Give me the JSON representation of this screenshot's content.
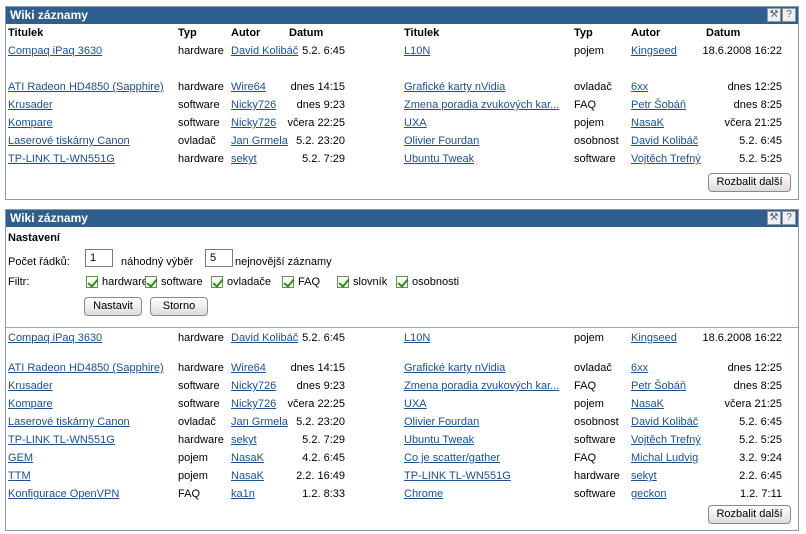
{
  "panel1": {
    "title": "Wiki záznamy",
    "icons": [
      "tools-icon",
      "help-icon"
    ],
    "headers": [
      "Titulek",
      "Typ",
      "Autor",
      "Datum"
    ],
    "left_rows": [
      {
        "title": "Compaq iPaq 3630",
        "type": "hardware",
        "author": "David Kolibáč",
        "date": "5.2. 6:45"
      },
      {
        "title": "ATI Radeon HD4850 (Sapphire)",
        "type": "hardware",
        "author": "Wire64",
        "date": "dnes 14:15"
      },
      {
        "title": "Krusader",
        "type": "software",
        "author": "Nicky726",
        "date": "dnes 9:23"
      },
      {
        "title": "Kompare",
        "type": "software",
        "author": "Nicky726",
        "date": "včera 22:25"
      },
      {
        "title": "Laserové tiskárny Canon",
        "type": "ovladač",
        "author": "Jan Grmela",
        "date": "5.2. 23:20"
      },
      {
        "title": "TP-LINK TL-WN551G",
        "type": "hardware",
        "author": "sekyt",
        "date": "5.2. 7:29"
      }
    ],
    "right_rows": [
      {
        "title": "L10N",
        "type": "pojem",
        "author": "Kingseed",
        "date": "18.6.2008 16:22"
      },
      {
        "title": "Grafické karty nVidia",
        "type": "ovladač",
        "author": "6xx",
        "date": "dnes 12:25"
      },
      {
        "title": "Zmena poradia zvukových kar...",
        "type": "FAQ",
        "author": "Petr Šobáň",
        "date": "dnes 8:25"
      },
      {
        "title": "UXA",
        "type": "pojem",
        "author": "NasaK",
        "date": "včera 21:25"
      },
      {
        "title": "Olivier Fourdan",
        "type": "osobnost",
        "author": "David Kolibáč",
        "date": "5.2. 6:45"
      },
      {
        "title": "Ubuntu Tweak",
        "type": "software",
        "author": "Vojtěch Trefný",
        "date": "5.2. 5:25"
      }
    ],
    "expand_label": "Rozbalit další"
  },
  "panel2": {
    "title": "Wiki záznamy",
    "settings": {
      "heading": "Nastavení",
      "rows_label": "Počet řádků:",
      "random_value": "1",
      "random_label": "náhodný výběr",
      "newest_value": "5",
      "newest_label": "nejnovější záznamy",
      "filter_label": "Filtr:",
      "filters": [
        {
          "label": "hardware",
          "checked": true
        },
        {
          "label": "software",
          "checked": true
        },
        {
          "label": "ovladače",
          "checked": true
        },
        {
          "label": "FAQ",
          "checked": true
        },
        {
          "label": "slovník",
          "checked": true
        },
        {
          "label": "osobnosti",
          "checked": true
        }
      ],
      "save_label": "Nastavit",
      "cancel_label": "Storno"
    },
    "left_rows": [
      {
        "title": "Compaq iPaq 3630",
        "type": "hardware",
        "author": "David Kolibáč",
        "date": "5.2. 6:45"
      },
      {
        "title": "ATI Radeon HD4850 (Sapphire)",
        "type": "hardware",
        "author": "Wire64",
        "date": "dnes 14:15"
      },
      {
        "title": "Krusader",
        "type": "software",
        "author": "Nicky726",
        "date": "dnes 9:23"
      },
      {
        "title": "Kompare",
        "type": "software",
        "author": "Nicky726",
        "date": "včera 22:25"
      },
      {
        "title": "Laserové tiskárny Canon",
        "type": "ovladač",
        "author": "Jan Grmela",
        "date": "5.2. 23:20"
      },
      {
        "title": "TP-LINK TL-WN551G",
        "type": "hardware",
        "author": "sekyt",
        "date": "5.2. 7:29"
      },
      {
        "title": "GEM",
        "type": "pojem",
        "author": "NasaK",
        "date": "4.2. 6:45"
      },
      {
        "title": "TTM",
        "type": "pojem",
        "author": "NasaK",
        "date": "2.2. 16:49"
      },
      {
        "title": "Konfigurace OpenVPN",
        "type": "FAQ",
        "author": "ka1n",
        "date": "1.2. 8:33"
      }
    ],
    "right_rows": [
      {
        "title": "L10N",
        "type": "pojem",
        "author": "Kingseed",
        "date": "18.6.2008 16:22"
      },
      {
        "title": "Grafické karty nVidia",
        "type": "ovladač",
        "author": "6xx",
        "date": "dnes 12:25"
      },
      {
        "title": "Zmena poradia zvukových kar...",
        "type": "FAQ",
        "author": "Petr Šobáň",
        "date": "dnes 8:25"
      },
      {
        "title": "UXA",
        "type": "pojem",
        "author": "NasaK",
        "date": "včera 21:25"
      },
      {
        "title": "Olivier Fourdan",
        "type": "osobnost",
        "author": "David Kolibáč",
        "date": "5.2. 6:45"
      },
      {
        "title": "Ubuntu Tweak",
        "type": "software",
        "author": "Vojtěch Trefný",
        "date": "5.2. 5:25"
      },
      {
        "title": "Co je scatter/gather",
        "type": "FAQ",
        "author": "Michal Ludvig",
        "date": "3.2. 9:24"
      },
      {
        "title": "TP-LINK TL-WN551G",
        "type": "hardware",
        "author": "sekyt",
        "date": "2.2. 6:45"
      },
      {
        "title": "Chrome",
        "type": "software",
        "author": "geckon",
        "date": "1.2. 7:11"
      }
    ],
    "expand_label": "Rozbalit další"
  }
}
